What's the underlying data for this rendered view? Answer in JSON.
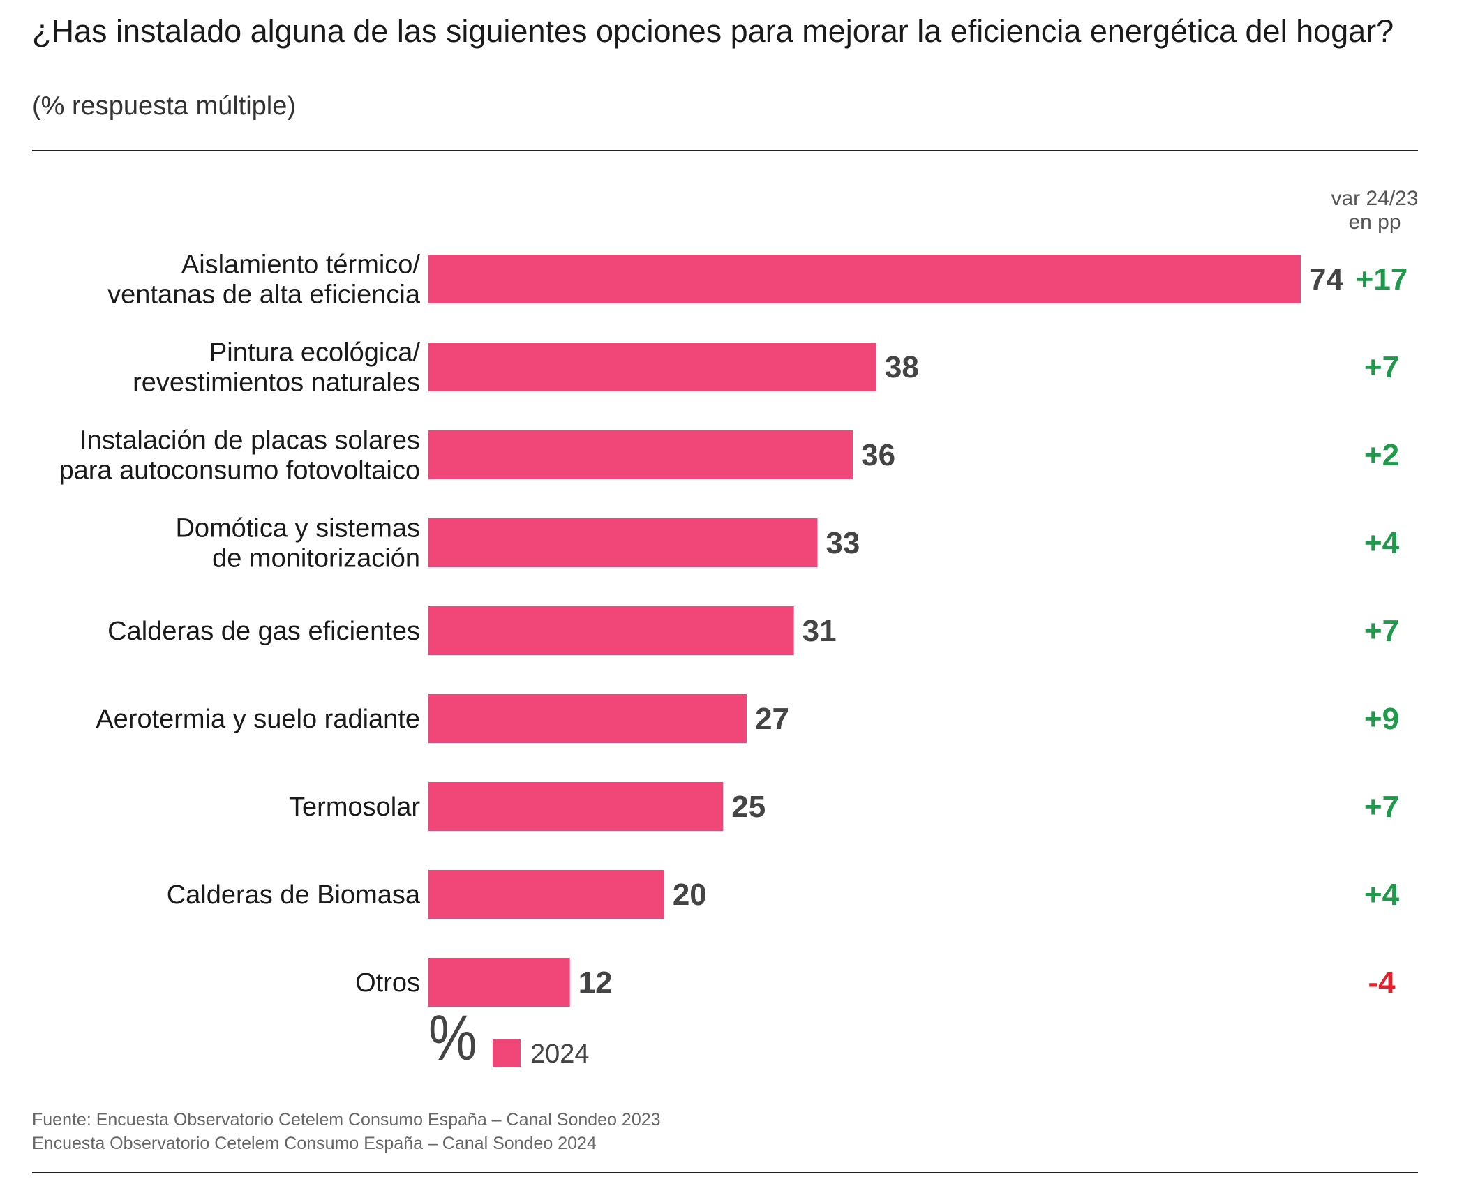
{
  "header": {
    "title": "¿Has instalado alguna de las siguientes opciones para mejorar la eficiencia energética del hogar?",
    "subtitle": "(% respuesta múltiple)",
    "var_header_line1": "var 24/23",
    "var_header_line2": "en pp"
  },
  "legend": {
    "unit_symbol": "%",
    "series_label": "2024"
  },
  "source": {
    "line1": "Fuente: Encuesta Observatorio Cetelem Consumo España – Canal Sondeo 2023",
    "line2": "Encuesta Observatorio Cetelem Consumo España – Canal Sondeo 2024"
  },
  "chart_data": {
    "type": "bar",
    "orientation": "horizontal",
    "title": "¿Has instalado alguna de las siguientes opciones para mejorar la eficiencia energética del hogar?",
    "subtitle": "(% respuesta múltiple)",
    "categories": [
      [
        "Aislamiento térmico/",
        "ventanas de alta eficiencia"
      ],
      [
        "Pintura ecológica/",
        "revestimientos naturales"
      ],
      [
        "Instalación de placas solares",
        "para autoconsumo fotovoltaico"
      ],
      [
        "Domótica y sistemas",
        "de monitorización"
      ],
      [
        "Calderas de gas eficientes"
      ],
      [
        "Aerotermia y suelo radiante"
      ],
      [
        "Termosolar"
      ],
      [
        "Calderas de Biomasa"
      ],
      [
        "Otros"
      ]
    ],
    "series": [
      {
        "name": "2024",
        "color": "#f04778",
        "values": [
          74,
          38,
          36,
          33,
          31,
          27,
          25,
          20,
          12
        ]
      }
    ],
    "variation": {
      "header": "var 24/23 en pp",
      "labels": [
        "+17",
        "+7",
        "+2",
        "+4",
        "+7",
        "+9",
        "+7",
        "+4",
        "-4"
      ],
      "positive_color": "#1f9a4b",
      "negative_color": "#e0202a"
    },
    "xlim": [
      0,
      74
    ],
    "grid": false,
    "legend": "bottom-left",
    "value_label_color": "#444444"
  }
}
